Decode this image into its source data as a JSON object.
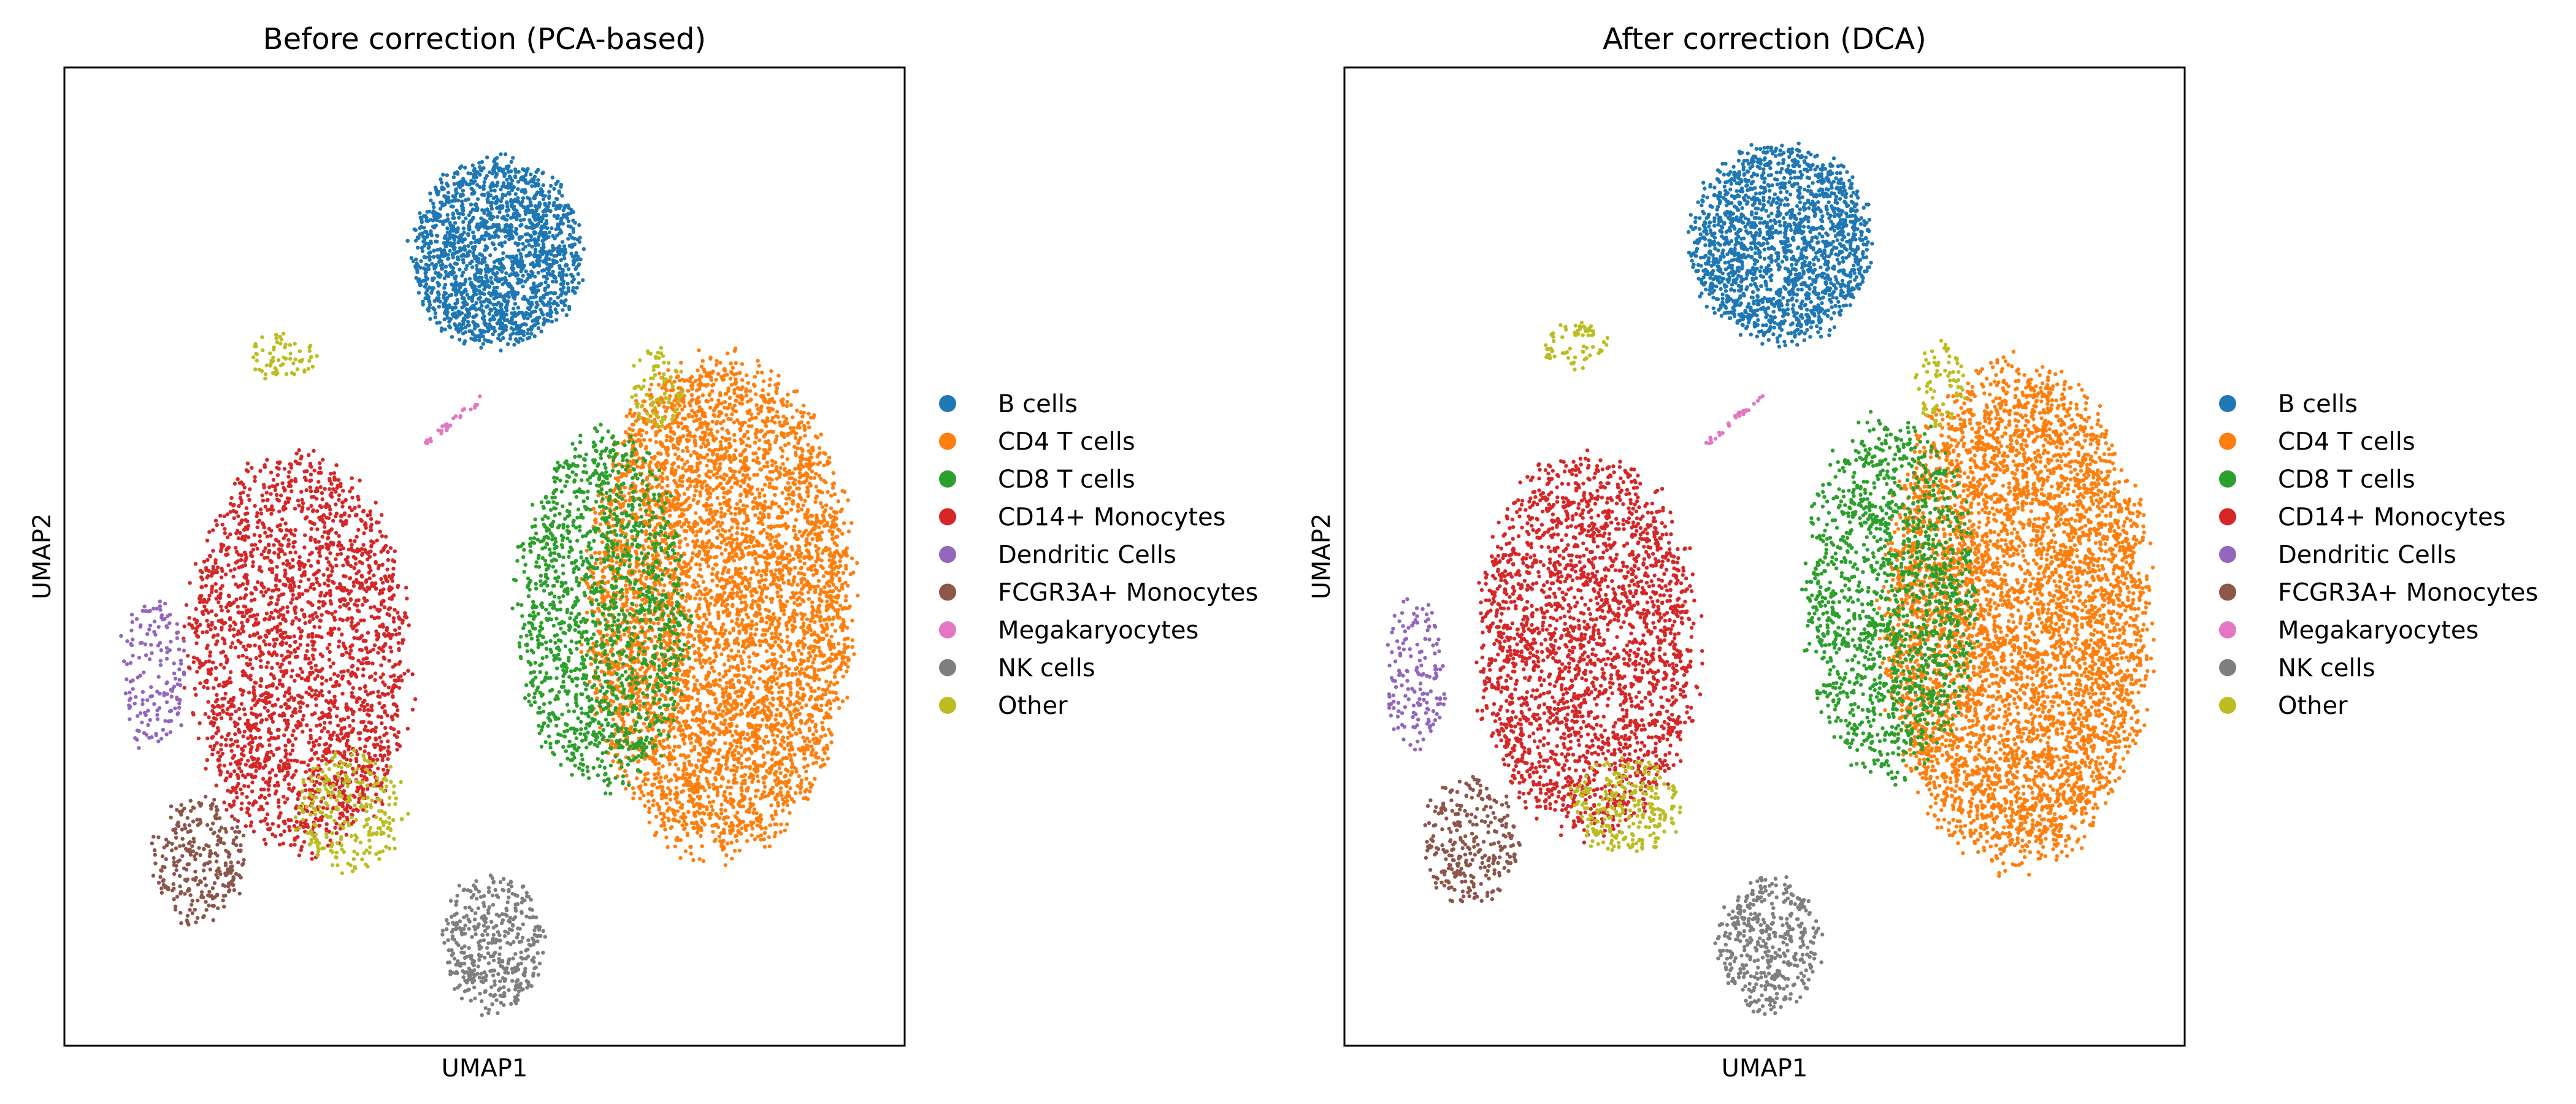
{
  "figure": {
    "legend_categories": [
      {
        "name": "B cells",
        "color": "#1f77b4"
      },
      {
        "name": "CD4 T cells",
        "color": "#ff7f0e"
      },
      {
        "name": "CD8 T cells",
        "color": "#2ca02c"
      },
      {
        "name": "CD14+ Monocytes",
        "color": "#d62728"
      },
      {
        "name": "Dendritic Cells",
        "color": "#9467bd"
      },
      {
        "name": "FCGR3A+ Monocytes",
        "color": "#8c564b"
      },
      {
        "name": "Megakaryocytes",
        "color": "#e377c2"
      },
      {
        "name": "NK cells",
        "color": "#7f7f7f"
      },
      {
        "name": "Other",
        "color": "#bcbd22"
      }
    ]
  },
  "chart_data": [
    {
      "type": "scatter",
      "title": "Before correction (PCA-based)",
      "xlabel": "UMAP1",
      "ylabel": "UMAP2",
      "xlim": [
        0,
        100
      ],
      "ylim": [
        0,
        100
      ],
      "grid": false,
      "ticks": false,
      "legend": "right",
      "clusters": [
        {
          "name": "B cells",
          "shape": "blob",
          "center": [
            51.5,
            81.0
          ],
          "spread": [
            10.0,
            9.5
          ],
          "count": 1800
        },
        {
          "name": "CD4 T cells",
          "shape": "blob",
          "center": [
            78.0,
            45.0
          ],
          "spread": [
            15.5,
            25.0
          ],
          "count": 5200
        },
        {
          "name": "CD8 T cells",
          "shape": "blob",
          "center": [
            64.0,
            44.5
          ],
          "spread": [
            10.0,
            18.0
          ],
          "count": 1500
        },
        {
          "name": "CD14+ Monocytes",
          "shape": "blob",
          "center": [
            28.0,
            40.0
          ],
          "spread": [
            13.0,
            20.0
          ],
          "count": 2400
        },
        {
          "name": "Dendritic Cells",
          "shape": "blob",
          "center": [
            10.5,
            38.0
          ],
          "spread": [
            4.0,
            8.0
          ],
          "count": 160
        },
        {
          "name": "FCGR3A+ Monocytes",
          "shape": "blob",
          "center": [
            16.0,
            19.0
          ],
          "spread": [
            5.5,
            6.5
          ],
          "count": 280
        },
        {
          "name": "Megakaryocytes",
          "shape": "arc",
          "center": [
            46.5,
            64.0
          ],
          "spread": [
            3.5,
            2.0
          ],
          "count": 30
        },
        {
          "name": "NK cells",
          "shape": "blob",
          "center": [
            51.0,
            10.5
          ],
          "spread": [
            6.0,
            7.0
          ],
          "count": 420
        },
        {
          "name": "Other",
          "shape": "blob",
          "center": [
            34.0,
            24.0
          ],
          "spread": [
            6.5,
            6.0
          ],
          "count": 260
        },
        {
          "name": "Other",
          "shape": "blob",
          "center": [
            26.0,
            70.5
          ],
          "spread": [
            4.0,
            2.5
          ],
          "count": 70
        },
        {
          "name": "Other",
          "shape": "blob",
          "center": [
            70.5,
            67.5
          ],
          "spread": [
            3.0,
            4.5
          ],
          "count": 80
        }
      ]
    },
    {
      "type": "scatter",
      "title": "After correction (DCA)",
      "xlabel": "UMAP1",
      "ylabel": "UMAP2",
      "xlim": [
        0,
        100
      ],
      "ylim": [
        0,
        100
      ],
      "grid": false,
      "ticks": false,
      "legend": "right",
      "clusters": [
        {
          "name": "B cells",
          "shape": "blob",
          "center": [
            52.0,
            82.0
          ],
          "spread": [
            10.5,
            10.0
          ],
          "count": 1800
        },
        {
          "name": "CD4 T cells",
          "shape": "blob",
          "center": [
            80.0,
            44.0
          ],
          "spread": [
            15.5,
            25.0
          ],
          "count": 5200
        },
        {
          "name": "CD8 T cells",
          "shape": "blob",
          "center": [
            65.0,
            46.0
          ],
          "spread": [
            10.0,
            18.0
          ],
          "count": 1500
        },
        {
          "name": "CD14+ Monocytes",
          "shape": "blob",
          "center": [
            29.0,
            41.0
          ],
          "spread": [
            13.0,
            19.0
          ],
          "count": 2400
        },
        {
          "name": "Dendritic Cells",
          "shape": "blob",
          "center": [
            8.5,
            38.0
          ],
          "spread": [
            3.5,
            7.5
          ],
          "count": 160
        },
        {
          "name": "FCGR3A+ Monocytes",
          "shape": "blob",
          "center": [
            15.0,
            21.0
          ],
          "spread": [
            5.5,
            6.5
          ],
          "count": 280
        },
        {
          "name": "Megakaryocytes",
          "shape": "arc",
          "center": [
            46.5,
            64.0
          ],
          "spread": [
            3.5,
            2.0
          ],
          "count": 30
        },
        {
          "name": "NK cells",
          "shape": "blob",
          "center": [
            50.5,
            10.5
          ],
          "spread": [
            6.0,
            7.0
          ],
          "count": 420
        },
        {
          "name": "Other",
          "shape": "blob",
          "center": [
            33.5,
            24.5
          ],
          "spread": [
            6.5,
            5.0
          ],
          "count": 260
        },
        {
          "name": "Other",
          "shape": "blob",
          "center": [
            27.5,
            71.5
          ],
          "spread": [
            4.0,
            2.5
          ],
          "count": 70
        },
        {
          "name": "Other",
          "shape": "blob",
          "center": [
            71.0,
            67.5
          ],
          "spread": [
            3.0,
            4.5
          ],
          "count": 80
        }
      ]
    }
  ]
}
